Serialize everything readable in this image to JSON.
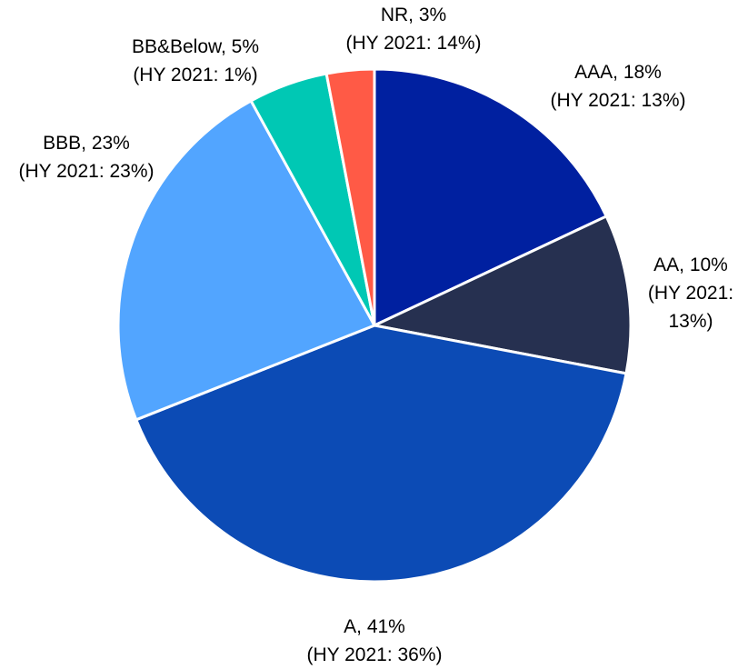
{
  "chart_data": {
    "type": "pie",
    "values": [
      18,
      10,
      41,
      23,
      5,
      3
    ],
    "value_labels": [
      "AAA, 18%",
      "AA, 10%",
      "A, 41%",
      "BBB, 23%",
      "BB&Below, 5%",
      "NR, 3%"
    ],
    "prior_labels": [
      "(HY 2021: 13%)",
      "(HY 2021: 13%)",
      "(HY 2021: 36%)",
      "(HY 2021: 23%)",
      "(HY 2021: 1%)",
      "(HY 2021: 14%)"
    ],
    "colors": [
      "#0020a0",
      "#263050",
      "#0c4bb5",
      "#52a5ff",
      "#00c8b4",
      "#ff5a46"
    ]
  }
}
